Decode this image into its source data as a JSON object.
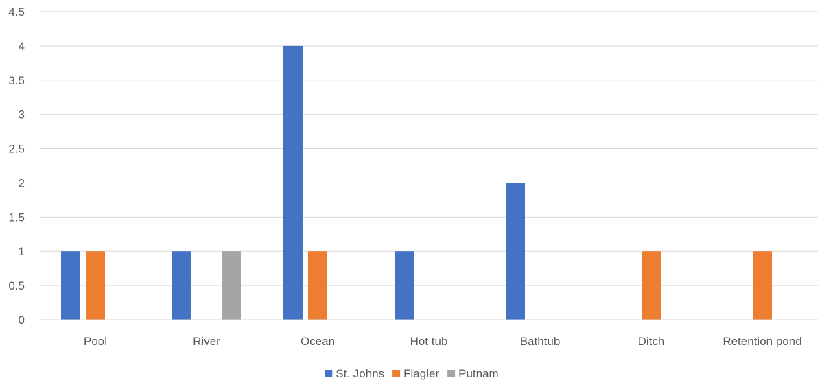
{
  "chart_data": {
    "type": "bar",
    "categories": [
      "Pool",
      "River",
      "Ocean",
      "Hot tub",
      "Bathtub",
      "Ditch",
      "Retention pond"
    ],
    "series": [
      {
        "name": "St. Johns",
        "color": "#4472c4",
        "values": [
          1,
          1,
          4,
          1,
          2,
          0,
          0
        ]
      },
      {
        "name": "Flagler",
        "color": "#ed7d31",
        "values": [
          1,
          0,
          1,
          0,
          0,
          1,
          1
        ]
      },
      {
        "name": "Putnam",
        "color": "#a5a5a5",
        "values": [
          0,
          1,
          0,
          0,
          0,
          0,
          0
        ]
      }
    ],
    "ylim": [
      0,
      4.5
    ],
    "yticks": [
      "0",
      "0.5",
      "1",
      "1.5",
      "2",
      "2.5",
      "3",
      "3.5",
      "4",
      "4.5"
    ],
    "grid": true,
    "legend_position": "bottom"
  }
}
